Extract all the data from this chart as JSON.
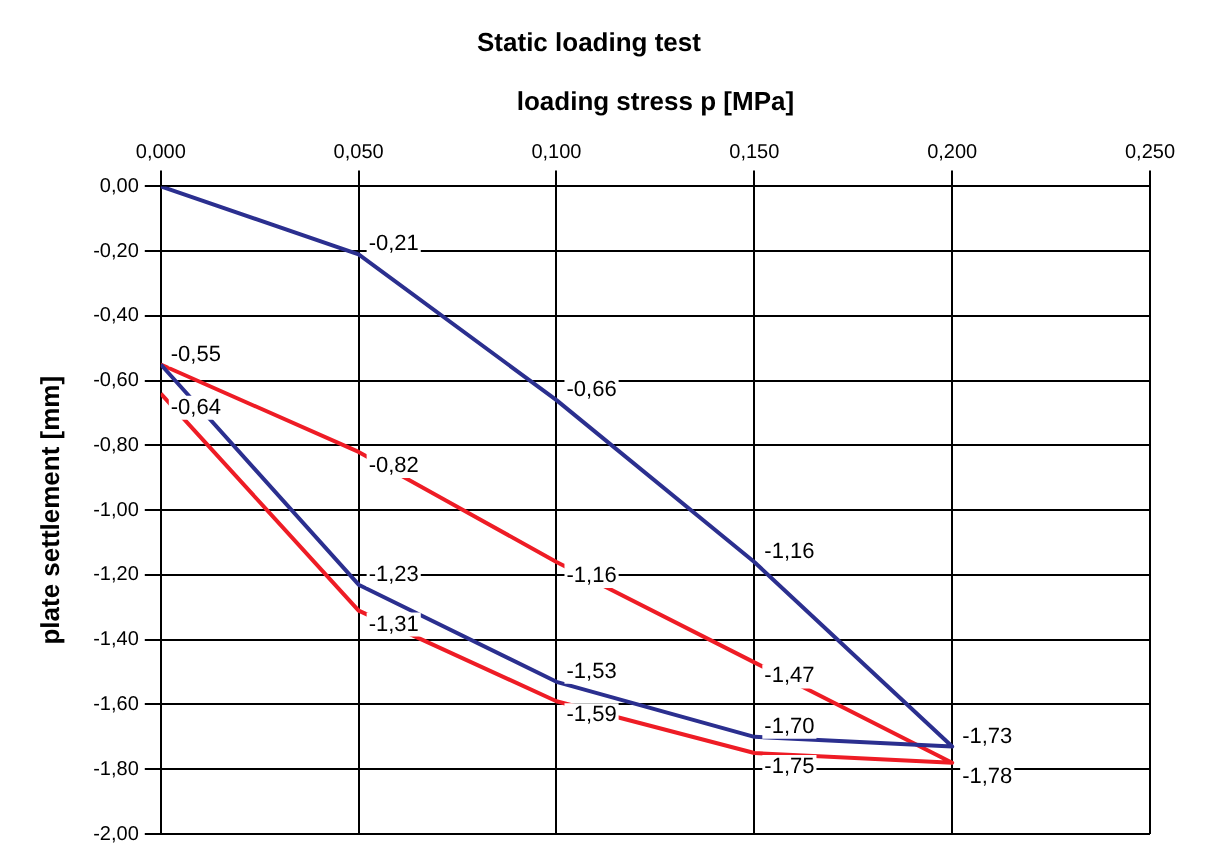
{
  "chart_data": {
    "type": "line",
    "title": "Static loading test",
    "xlabel": "loading stress p [MPa]",
    "ylabel": "plate settlement [mm]",
    "xlim": [
      0,
      0.25
    ],
    "xticks": [
      {
        "value": 0,
        "label": "0,000"
      },
      {
        "value": 0.05,
        "label": "0,050"
      },
      {
        "value": 0.1,
        "label": "0,100"
      },
      {
        "value": 0.15,
        "label": "0,150"
      },
      {
        "value": 0.2,
        "label": "0,200"
      },
      {
        "value": 0.25,
        "label": "0,250"
      }
    ],
    "ylim": [
      -2,
      0
    ],
    "yticks": [
      {
        "value": 0,
        "label": "0,00"
      },
      {
        "value": -0.2,
        "label": "-0,20"
      },
      {
        "value": -0.4,
        "label": "-0,40"
      },
      {
        "value": -0.6,
        "label": "-0,60"
      },
      {
        "value": -0.8,
        "label": "-0,80"
      },
      {
        "value": -1,
        "label": "-1,00"
      },
      {
        "value": -1.2,
        "label": "-1,20"
      },
      {
        "value": -1.4,
        "label": "-1,40"
      },
      {
        "value": -1.6,
        "label": "-1,60"
      },
      {
        "value": -1.8,
        "label": "-1,80"
      },
      {
        "value": -2,
        "label": "-2,00"
      }
    ],
    "grid": true,
    "legend": false,
    "marker": "none",
    "line_style": "solid",
    "series": [
      {
        "color": "#2b2f8f",
        "x": [
          0,
          0.05,
          0.1,
          0.15,
          0.2,
          0.15,
          0.1,
          0.05,
          0
        ],
        "values": [
          0,
          -0.21,
          -0.66,
          -1.16,
          -1.73,
          -1.7,
          -1.53,
          -1.23,
          -0.55
        ],
        "value_labels": [
          null,
          "-0,21",
          "-0,66",
          "-1,16",
          "-1,73",
          "-1,70",
          "-1,53",
          "-1,23",
          "-0,55"
        ]
      },
      {
        "color": "#ee1c25",
        "x": [
          0,
          0.05,
          0.1,
          0.15,
          0.2,
          0.15,
          0.1,
          0.05,
          0
        ],
        "values": [
          -0.55,
          -0.82,
          -1.16,
          -1.47,
          -1.78,
          -1.75,
          -1.59,
          -1.31,
          -0.64
        ],
        "value_labels": [
          null,
          "-0,82",
          "-1,16",
          "-1,47",
          "-1,78",
          "-1,75",
          "-1,59",
          "-1,31",
          "-0,64"
        ]
      }
    ]
  }
}
